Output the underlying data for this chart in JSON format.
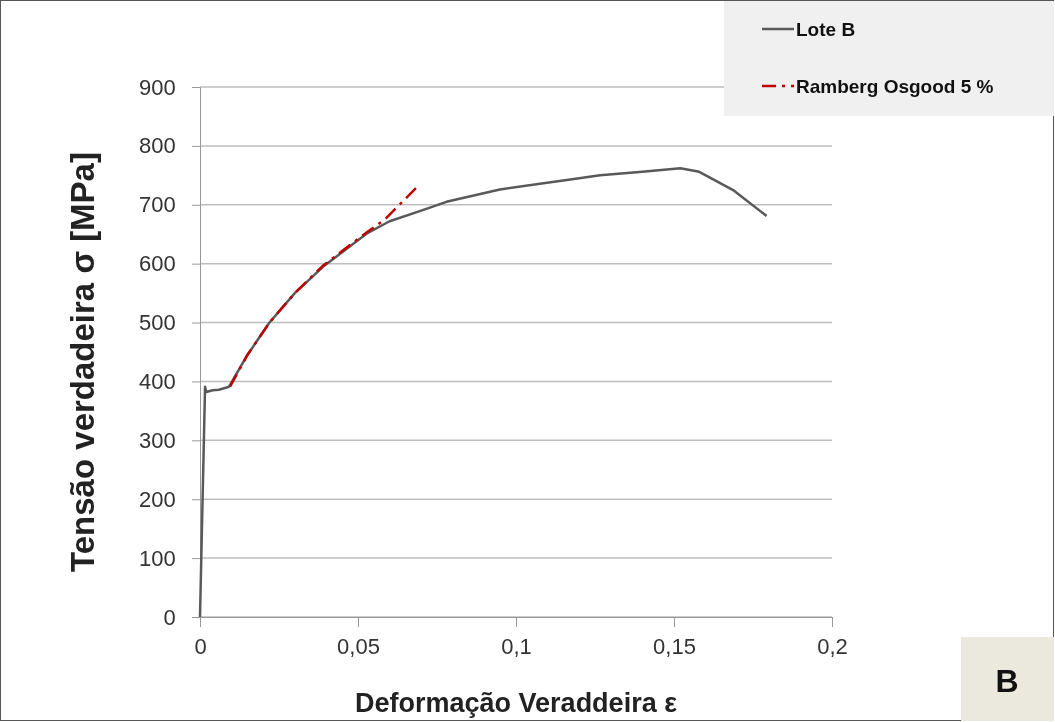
{
  "chart_data": {
    "type": "line",
    "xlabel": "Deformação Veraddeira ε",
    "ylabel": "Tensão verdadeira σ [MPa]",
    "xlim": [
      0,
      0.2
    ],
    "xticks": [
      0,
      {
        "value": 0.05,
        "label": "0,05"
      },
      {
        "value": 0.1,
        "label": "0,1"
      },
      {
        "value": 0.15,
        "label": "0,15"
      },
      {
        "value": 0.2,
        "label": "0,2"
      }
    ],
    "ylim": [
      0,
      900
    ],
    "yticks": [
      0,
      100,
      200,
      300,
      400,
      500,
      600,
      700,
      800,
      900
    ],
    "grid": "y",
    "legend": "top right",
    "annotations": [
      "B"
    ],
    "series": [
      {
        "name": "Lote B",
        "color": "#595959",
        "line_style": "solid",
        "x": [
          0,
          0.0016,
          0.002,
          0.004,
          0.006,
          0.0092,
          0.015,
          0.022,
          0.03,
          0.039,
          0.0527,
          0.06,
          0.07,
          0.078,
          0.0949,
          0.12,
          0.1266,
          0.14,
          0.152,
          0.158,
          0.1687,
          0.1793
        ],
        "values": [
          0,
          391,
          382,
          385,
          386,
          391,
          445,
          500,
          550,
          595,
          651,
          672,
          690,
          705,
          726,
          745,
          750,
          756,
          762,
          756,
          725,
          681
        ]
      },
      {
        "name": "Ramberg Osgood 5 %",
        "color": "#c00000",
        "line_style": "dashed",
        "x": [
          0.0095,
          0.015,
          0.022,
          0.03,
          0.039,
          0.0527,
          0.0585,
          0.069
        ],
        "values": [
          391,
          445,
          500,
          550,
          597,
          653,
          675,
          732
        ]
      }
    ]
  }
}
